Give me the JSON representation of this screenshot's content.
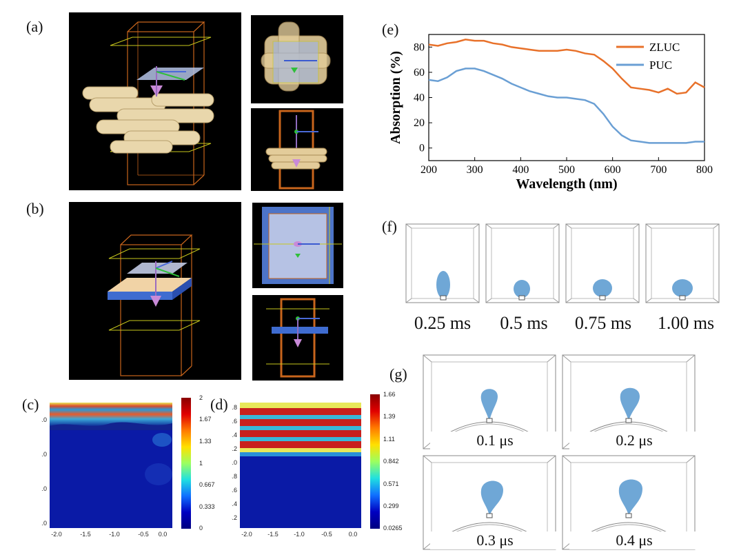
{
  "labels": {
    "a": "(a)",
    "b": "(b)",
    "c": "(c)",
    "d": "(d)",
    "e": "(e)",
    "f": "(f)",
    "g": "(g)"
  },
  "f_captions": [
    "0.25 ms",
    "0.5 ms",
    "0.75 ms",
    "1.00 ms"
  ],
  "g_captions": [
    "0.1 μs",
    "0.2 μs",
    "0.3 μs",
    "0.4 μs"
  ],
  "colorbar_c": [
    "2",
    "1.67",
    "1.33",
    "1",
    "0.667",
    "0.333",
    "0"
  ],
  "colorbar_d": [
    "1.66",
    "1.39",
    "1.11",
    "0.842",
    "0.571",
    "0.299",
    "0.0265"
  ],
  "map_c": {
    "yticks": [
      "4.0",
      "3.0",
      "2.0",
      "1.0"
    ],
    "xticks": [
      "-2.0",
      "-1.5",
      "-1.0",
      "-0.5",
      "0.0"
    ]
  },
  "map_d": {
    "yticks": [
      "5.8",
      "5.6",
      "5.4",
      "5.2",
      "5.0",
      "4.8",
      "4.6",
      "4.4",
      "4.2"
    ],
    "xticks": [
      "-2.0",
      "-1.5",
      "-1.0",
      "-0.5",
      "0.0"
    ]
  },
  "chart_data": {
    "type": "line",
    "xlabel": "Wavelength (nm)",
    "ylabel": "Absorption (%)",
    "xlim": [
      200,
      800
    ],
    "ylim": [
      -10,
      90
    ],
    "xticks": [
      200,
      300,
      400,
      500,
      600,
      700,
      800
    ],
    "yticks": [
      0,
      20,
      40,
      60,
      80
    ],
    "legend_position": "top-right",
    "series": [
      {
        "name": "ZLUC",
        "color": "#e8712a",
        "x": [
          200,
          220,
          240,
          260,
          280,
          300,
          320,
          340,
          360,
          380,
          400,
          420,
          440,
          460,
          480,
          500,
          520,
          540,
          560,
          580,
          600,
          620,
          640,
          660,
          680,
          700,
          720,
          740,
          760,
          780,
          800
        ],
        "y": [
          82,
          81,
          83,
          84,
          86,
          85,
          85,
          83,
          82,
          80,
          79,
          78,
          77,
          77,
          77,
          78,
          77,
          75,
          74,
          69,
          63,
          55,
          48,
          47,
          46,
          44,
          47,
          43,
          44,
          52,
          48
        ]
      },
      {
        "name": "PUC",
        "color": "#6a9fd4",
        "x": [
          200,
          220,
          240,
          260,
          280,
          300,
          320,
          340,
          360,
          380,
          400,
          420,
          440,
          460,
          480,
          500,
          520,
          540,
          560,
          580,
          600,
          620,
          640,
          660,
          680,
          700,
          720,
          740,
          760,
          780,
          800
        ],
        "y": [
          54,
          53,
          56,
          61,
          63,
          63,
          61,
          58,
          55,
          51,
          48,
          45,
          43,
          41,
          40,
          40,
          39,
          38,
          35,
          27,
          17,
          10,
          6,
          5,
          4,
          4,
          4,
          4,
          4,
          5,
          5
        ]
      }
    ]
  }
}
